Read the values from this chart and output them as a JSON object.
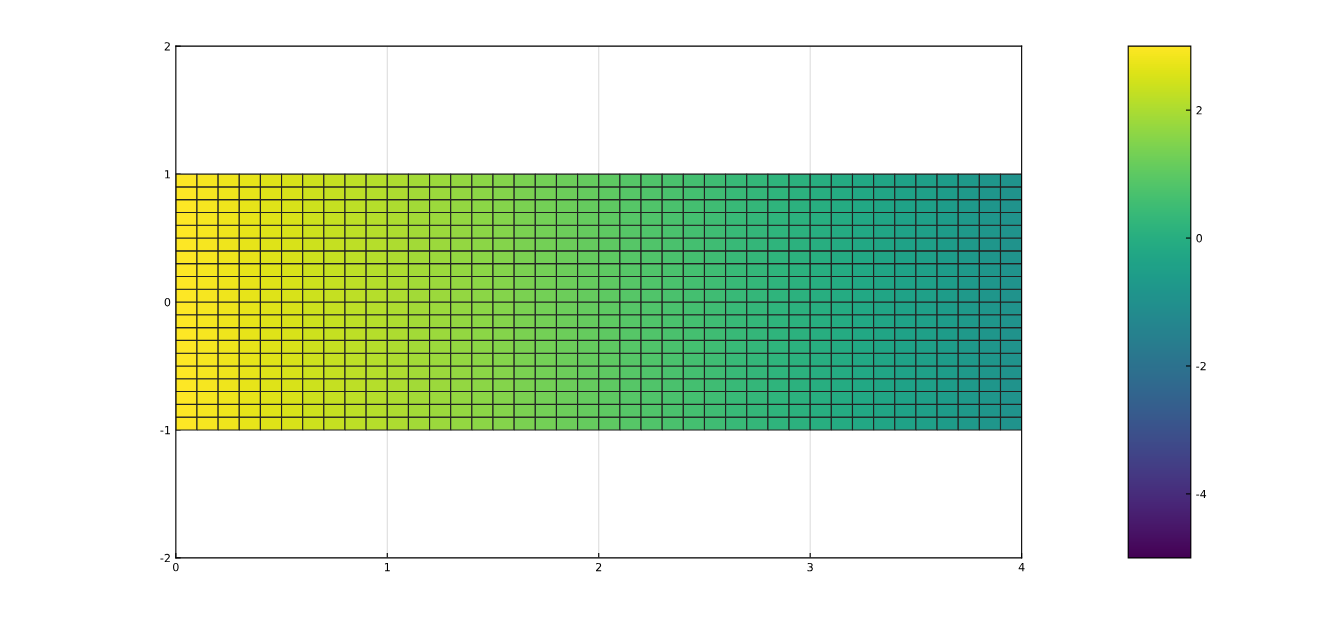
{
  "chart_data": {
    "type": "heatmap",
    "x": [
      0.05,
      0.15,
      0.25,
      0.35,
      0.45,
      0.55,
      0.65,
      0.75,
      0.85,
      0.95,
      1.05,
      1.15,
      1.25,
      1.35,
      1.45,
      1.55,
      1.65,
      1.75,
      1.85,
      1.95,
      2.05,
      2.15,
      2.25,
      2.35,
      2.45,
      2.55,
      2.65,
      2.75,
      2.85,
      2.95,
      3.05,
      3.15,
      3.25,
      3.35,
      3.45,
      3.55,
      3.65,
      3.75,
      3.85,
      3.95
    ],
    "y": [
      -0.95,
      -0.85,
      -0.75,
      -0.65,
      -0.55,
      -0.45,
      -0.35,
      -0.25,
      -0.15,
      -0.05,
      0.05,
      0.15,
      0.25,
      0.35,
      0.45,
      0.55,
      0.65,
      0.75,
      0.85,
      0.95
    ],
    "cells": [
      [
        3,
        2.9,
        2.8,
        2.7,
        2.6,
        2.5,
        2.4,
        2.3,
        2.2,
        2.1,
        2,
        1.9,
        1.8,
        1.7,
        1.6,
        1.5,
        1.4,
        1.3,
        1.2,
        1.1,
        1,
        0.9,
        0.8,
        0.7,
        0.6,
        0.5,
        0.4,
        0.3,
        0.2,
        0.1,
        0,
        -0.1,
        -0.2,
        -0.3,
        -0.4,
        -0.5,
        -0.6,
        -0.7,
        -0.8,
        -0.9
      ],
      [
        3,
        2.9,
        2.8,
        2.7,
        2.6,
        2.5,
        2.4,
        2.3,
        2.2,
        2.1,
        2,
        1.9,
        1.8,
        1.7,
        1.6,
        1.5,
        1.4,
        1.3,
        1.2,
        1.1,
        1,
        0.9,
        0.8,
        0.7,
        0.6,
        0.5,
        0.4,
        0.3,
        0.2,
        0.1,
        0,
        -0.1,
        -0.2,
        -0.3,
        -0.4,
        -0.5,
        -0.6,
        -0.7,
        -0.8,
        -0.9
      ],
      [
        3,
        2.9,
        2.8,
        2.7,
        2.6,
        2.5,
        2.4,
        2.3,
        2.2,
        2.1,
        2,
        1.9,
        1.8,
        1.7,
        1.6,
        1.5,
        1.4,
        1.3,
        1.2,
        1.1,
        1,
        0.9,
        0.8,
        0.7,
        0.6,
        0.5,
        0.4,
        0.3,
        0.2,
        0.1,
        0,
        -0.1,
        -0.2,
        -0.3,
        -0.4,
        -0.5,
        -0.6,
        -0.7,
        -0.8,
        -0.9
      ],
      [
        3,
        2.9,
        2.8,
        2.7,
        2.6,
        2.5,
        2.4,
        2.3,
        2.2,
        2.1,
        2,
        1.9,
        1.8,
        1.7,
        1.6,
        1.5,
        1.4,
        1.3,
        1.2,
        1.1,
        1,
        0.9,
        0.8,
        0.7,
        0.6,
        0.5,
        0.4,
        0.3,
        0.2,
        0.1,
        0,
        -0.1,
        -0.2,
        -0.3,
        -0.4,
        -0.5,
        -0.6,
        -0.7,
        -0.8,
        -0.9
      ],
      [
        3,
        2.9,
        2.8,
        2.7,
        2.6,
        2.5,
        2.4,
        2.3,
        2.2,
        2.1,
        2,
        1.9,
        1.8,
        1.7,
        1.6,
        1.5,
        1.4,
        1.3,
        1.2,
        1.1,
        1,
        0.9,
        0.8,
        0.7,
        0.6,
        0.5,
        0.4,
        0.3,
        0.2,
        0.1,
        0,
        -0.1,
        -0.2,
        -0.3,
        -0.4,
        -0.5,
        -0.6,
        -0.7,
        -0.8,
        -0.9
      ],
      [
        3,
        2.9,
        2.8,
        2.7,
        2.6,
        2.5,
        2.4,
        2.3,
        2.2,
        2.1,
        2,
        1.9,
        1.8,
        1.7,
        1.6,
        1.5,
        1.4,
        1.3,
        1.2,
        1.1,
        1,
        0.9,
        0.8,
        0.7,
        0.6,
        0.5,
        0.4,
        0.3,
        0.2,
        0.1,
        0,
        -0.1,
        -0.2,
        -0.3,
        -0.4,
        -0.5,
        -0.6,
        -0.7,
        -0.8,
        -0.9
      ],
      [
        3,
        2.9,
        2.8,
        2.7,
        2.6,
        2.5,
        2.4,
        2.3,
        2.2,
        2.1,
        2,
        1.9,
        1.8,
        1.7,
        1.6,
        1.5,
        1.4,
        1.3,
        1.2,
        1.1,
        1,
        0.9,
        0.8,
        0.7,
        0.6,
        0.5,
        0.4,
        0.3,
        0.2,
        0.1,
        0,
        -0.1,
        -0.2,
        -0.3,
        -0.4,
        -0.5,
        -0.6,
        -0.7,
        -0.8,
        -0.9
      ],
      [
        3,
        2.9,
        2.8,
        2.7,
        2.6,
        2.5,
        2.4,
        2.3,
        2.2,
        2.1,
        2,
        1.9,
        1.8,
        1.7,
        1.6,
        1.5,
        1.4,
        1.3,
        1.2,
        1.1,
        1,
        0.9,
        0.8,
        0.7,
        0.6,
        0.5,
        0.4,
        0.3,
        0.2,
        0.1,
        0,
        -0.1,
        -0.2,
        -0.3,
        -0.4,
        -0.5,
        -0.6,
        -0.7,
        -0.8,
        -0.9
      ],
      [
        3,
        2.9,
        2.8,
        2.7,
        2.6,
        2.5,
        2.4,
        2.3,
        2.2,
        2.1,
        2,
        1.9,
        1.8,
        1.7,
        1.6,
        1.5,
        1.4,
        1.3,
        1.2,
        1.1,
        1,
        0.9,
        0.8,
        0.7,
        0.6,
        0.5,
        0.4,
        0.3,
        0.2,
        0.1,
        0,
        -0.1,
        -0.2,
        -0.3,
        -0.4,
        -0.5,
        -0.6,
        -0.7,
        -0.8,
        -0.9
      ],
      [
        3,
        2.9,
        2.8,
        2.7,
        2.6,
        2.5,
        2.4,
        2.3,
        2.2,
        2.1,
        2,
        1.9,
        1.8,
        1.7,
        1.6,
        1.5,
        1.4,
        1.3,
        1.2,
        1.1,
        1,
        0.9,
        0.8,
        0.7,
        0.6,
        0.5,
        0.4,
        0.3,
        0.2,
        0.1,
        0,
        -0.1,
        -0.2,
        -0.3,
        -0.4,
        -0.5,
        -0.6,
        -0.7,
        -0.8,
        -0.9
      ],
      [
        3,
        2.9,
        2.8,
        2.7,
        2.6,
        2.5,
        2.4,
        2.3,
        2.2,
        2.1,
        2,
        1.9,
        1.8,
        1.7,
        1.6,
        1.5,
        1.4,
        1.3,
        1.2,
        1.1,
        1,
        0.9,
        0.8,
        0.7,
        0.6,
        0.5,
        0.4,
        0.3,
        0.2,
        0.1,
        0,
        -0.1,
        -0.2,
        -0.3,
        -0.4,
        -0.5,
        -0.6,
        -0.7,
        -0.8,
        -0.9
      ],
      [
        3,
        2.9,
        2.8,
        2.7,
        2.6,
        2.5,
        2.4,
        2.3,
        2.2,
        2.1,
        2,
        1.9,
        1.8,
        1.7,
        1.6,
        1.5,
        1.4,
        1.3,
        1.2,
        1.1,
        1,
        0.9,
        0.8,
        0.7,
        0.6,
        0.5,
        0.4,
        0.3,
        0.2,
        0.1,
        0,
        -0.1,
        -0.2,
        -0.3,
        -0.4,
        -0.5,
        -0.6,
        -0.7,
        -0.8,
        -0.9
      ],
      [
        3,
        2.9,
        2.8,
        2.7,
        2.6,
        2.5,
        2.4,
        2.3,
        2.2,
        2.1,
        2,
        1.9,
        1.8,
        1.7,
        1.6,
        1.5,
        1.4,
        1.3,
        1.2,
        1.1,
        1,
        0.9,
        0.8,
        0.7,
        0.6,
        0.5,
        0.4,
        0.3,
        0.2,
        0.1,
        0,
        -0.1,
        -0.2,
        -0.3,
        -0.4,
        -0.5,
        -0.6,
        -0.7,
        -0.8,
        -0.9
      ],
      [
        3,
        2.9,
        2.8,
        2.7,
        2.6,
        2.5,
        2.4,
        2.3,
        2.2,
        2.1,
        2,
        1.9,
        1.8,
        1.7,
        1.6,
        1.5,
        1.4,
        1.3,
        1.2,
        1.1,
        1,
        0.9,
        0.8,
        0.7,
        0.6,
        0.5,
        0.4,
        0.3,
        0.2,
        0.1,
        0,
        -0.1,
        -0.2,
        -0.3,
        -0.4,
        -0.5,
        -0.6,
        -0.7,
        -0.8,
        -0.9
      ],
      [
        3,
        2.9,
        2.8,
        2.7,
        2.6,
        2.5,
        2.4,
        2.3,
        2.2,
        2.1,
        2,
        1.9,
        1.8,
        1.7,
        1.6,
        1.5,
        1.4,
        1.3,
        1.2,
        1.1,
        1,
        0.9,
        0.8,
        0.7,
        0.6,
        0.5,
        0.4,
        0.3,
        0.2,
        0.1,
        0,
        -0.1,
        -0.2,
        -0.3,
        -0.4,
        -0.5,
        -0.6,
        -0.7,
        -0.8,
        -0.9
      ],
      [
        3,
        2.9,
        2.8,
        2.7,
        2.6,
        2.5,
        2.4,
        2.3,
        2.2,
        2.1,
        2,
        1.9,
        1.8,
        1.7,
        1.6,
        1.5,
        1.4,
        1.3,
        1.2,
        1.1,
        1,
        0.9,
        0.8,
        0.7,
        0.6,
        0.5,
        0.4,
        0.3,
        0.2,
        0.1,
        0,
        -0.1,
        -0.2,
        -0.3,
        -0.4,
        -0.5,
        -0.6,
        -0.7,
        -0.8,
        -0.9
      ],
      [
        3,
        2.9,
        2.8,
        2.7,
        2.6,
        2.5,
        2.4,
        2.3,
        2.2,
        2.1,
        2,
        1.9,
        1.8,
        1.7,
        1.6,
        1.5,
        1.4,
        1.3,
        1.2,
        1.1,
        1,
        0.9,
        0.8,
        0.7,
        0.6,
        0.5,
        0.4,
        0.3,
        0.2,
        0.1,
        0,
        -0.1,
        -0.2,
        -0.3,
        -0.4,
        -0.5,
        -0.6,
        -0.7,
        -0.8,
        -0.9
      ],
      [
        3,
        2.9,
        2.8,
        2.7,
        2.6,
        2.5,
        2.4,
        2.3,
        2.2,
        2.1,
        2,
        1.9,
        1.8,
        1.7,
        1.6,
        1.5,
        1.4,
        1.3,
        1.2,
        1.1,
        1,
        0.9,
        0.8,
        0.7,
        0.6,
        0.5,
        0.4,
        0.3,
        0.2,
        0.1,
        0,
        -0.1,
        -0.2,
        -0.3,
        -0.4,
        -0.5,
        -0.6,
        -0.7,
        -0.8,
        -0.9
      ],
      [
        3,
        2.9,
        2.8,
        2.7,
        2.6,
        2.5,
        2.4,
        2.3,
        2.2,
        2.1,
        2,
        1.9,
        1.8,
        1.7,
        1.6,
        1.5,
        1.4,
        1.3,
        1.2,
        1.1,
        1,
        0.9,
        0.8,
        0.7,
        0.6,
        0.5,
        0.4,
        0.3,
        0.2,
        0.1,
        0,
        -0.1,
        -0.2,
        -0.3,
        -0.4,
        -0.5,
        -0.6,
        -0.7,
        -0.8,
        -0.9
      ],
      [
        3,
        2.9,
        2.8,
        2.7,
        2.6,
        2.5,
        2.4,
        2.3,
        2.2,
        2.1,
        2,
        1.9,
        1.8,
        1.7,
        1.6,
        1.5,
        1.4,
        1.3,
        1.2,
        1.1,
        1,
        0.9,
        0.8,
        0.7,
        0.6,
        0.5,
        0.4,
        0.3,
        0.2,
        0.1,
        0,
        -0.1,
        -0.2,
        -0.3,
        -0.4,
        -0.5,
        -0.6,
        -0.7,
        -0.8,
        -0.9
      ]
    ],
    "xlim": [
      0,
      4
    ],
    "xticks": [
      0,
      1,
      2,
      3,
      4
    ],
    "ylim": [
      -2,
      2
    ],
    "yticks": [
      -2,
      -1,
      0,
      1,
      2
    ],
    "clim": [
      -5,
      3
    ],
    "cticks": [
      -4,
      -2,
      0,
      2
    ],
    "grid": true
  }
}
